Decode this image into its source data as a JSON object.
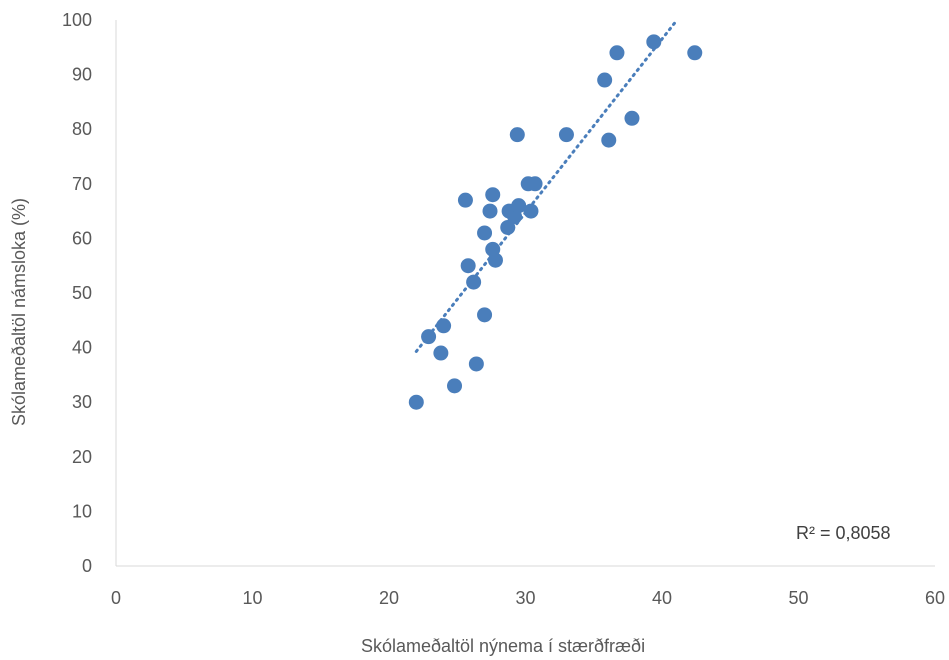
{
  "chart_data": {
    "type": "scatter",
    "title": "",
    "xlabel": "Skólameðaltöl nýnema í stærðfræði",
    "ylabel": "Skólameðaltöl námsloka (%)",
    "xlim": [
      0,
      60
    ],
    "ylim": [
      0,
      100
    ],
    "x_ticks": [
      0,
      10,
      20,
      30,
      40,
      50,
      60
    ],
    "y_ticks": [
      0,
      10,
      20,
      30,
      40,
      50,
      60,
      70,
      80,
      90,
      100
    ],
    "grid": false,
    "legend": "none",
    "colors": {
      "point": "#4a7ebb",
      "trendline": "#4a7ebb",
      "axis": "#d9d9d9"
    },
    "series": [
      {
        "points": [
          {
            "x": 22.0,
            "y": 30
          },
          {
            "x": 22.9,
            "y": 42
          },
          {
            "x": 23.8,
            "y": 39
          },
          {
            "x": 24.0,
            "y": 44
          },
          {
            "x": 24.8,
            "y": 33
          },
          {
            "x": 25.6,
            "y": 67
          },
          {
            "x": 25.8,
            "y": 55
          },
          {
            "x": 26.2,
            "y": 52
          },
          {
            "x": 26.4,
            "y": 37
          },
          {
            "x": 27.0,
            "y": 46
          },
          {
            "x": 27.0,
            "y": 61
          },
          {
            "x": 27.4,
            "y": 65
          },
          {
            "x": 27.6,
            "y": 58
          },
          {
            "x": 27.6,
            "y": 68
          },
          {
            "x": 27.8,
            "y": 56
          },
          {
            "x": 28.7,
            "y": 62
          },
          {
            "x": 28.8,
            "y": 65
          },
          {
            "x": 29.2,
            "y": 64
          },
          {
            "x": 29.4,
            "y": 79
          },
          {
            "x": 29.5,
            "y": 66
          },
          {
            "x": 30.2,
            "y": 70
          },
          {
            "x": 30.4,
            "y": 65
          },
          {
            "x": 30.7,
            "y": 70
          },
          {
            "x": 33.0,
            "y": 79
          },
          {
            "x": 35.8,
            "y": 89
          },
          {
            "x": 36.1,
            "y": 78
          },
          {
            "x": 36.7,
            "y": 94
          },
          {
            "x": 37.8,
            "y": 82
          },
          {
            "x": 39.4,
            "y": 96
          },
          {
            "x": 42.4,
            "y": 94
          }
        ]
      }
    ],
    "trendline": {
      "type": "linear",
      "x_start": 22.0,
      "x_end": 41.1,
      "y_start": 39.3,
      "y_end": 100
    },
    "annotations": [
      {
        "text": "R² = 0,8058"
      }
    ]
  }
}
